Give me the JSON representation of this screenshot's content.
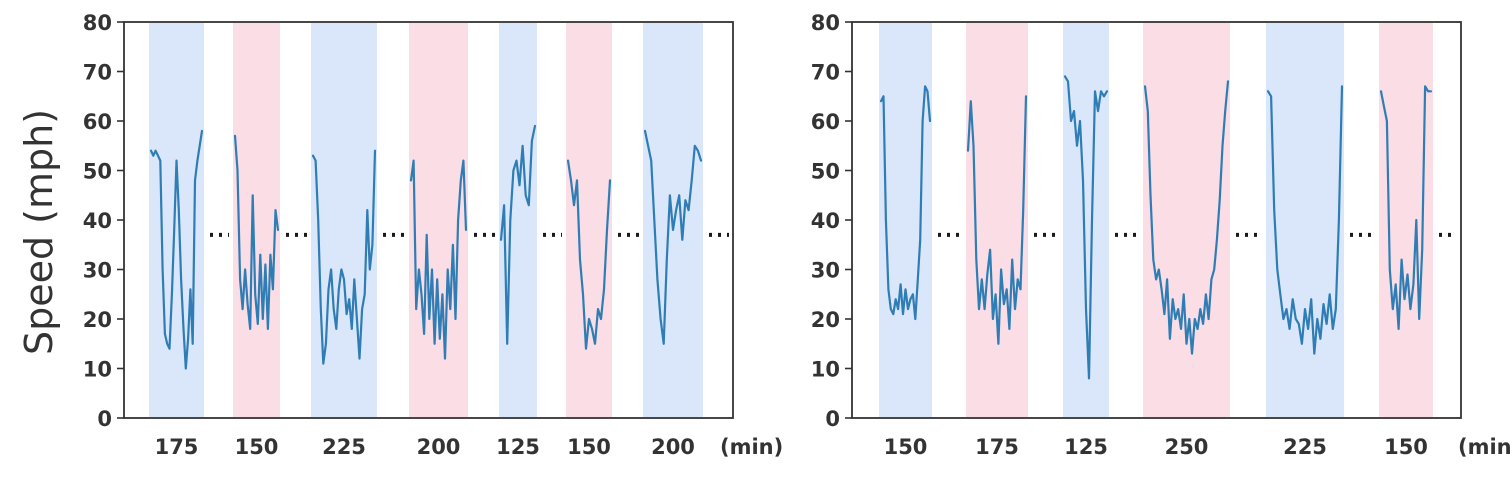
{
  "figure": {
    "ylabel": "Speed (mph)",
    "unit_label": "(min)",
    "y_ticks": [
      "0",
      "10",
      "20",
      "30",
      "40",
      "50",
      "60",
      "70",
      "80"
    ]
  },
  "chart_data": [
    {
      "type": "line",
      "title": "",
      "ylabel": "Speed (mph)",
      "xlabel": "(min)",
      "ylim": [
        0,
        80
      ],
      "threshold": 37,
      "segments": [
        {
          "label": "175",
          "shade": "blue",
          "values": [
            54,
            53,
            54,
            53,
            52,
            30,
            17,
            15,
            14,
            25,
            38,
            52,
            42,
            28,
            18,
            10,
            16,
            26,
            15,
            48,
            52,
            55,
            58
          ]
        },
        {
          "label": "150",
          "shade": "pink",
          "values": [
            57,
            50,
            28,
            22,
            30,
            23,
            18,
            45,
            25,
            19,
            33,
            20,
            31,
            18,
            33,
            26,
            42,
            38
          ]
        },
        {
          "label": "225",
          "shade": "blue",
          "values": [
            53,
            52,
            40,
            22,
            11,
            15,
            26,
            30,
            22,
            18,
            26,
            30,
            28,
            21,
            24,
            18,
            28,
            20,
            12,
            22,
            25,
            42,
            30,
            35,
            54
          ]
        },
        {
          "label": "200",
          "shade": "pink",
          "values": [
            48,
            52,
            22,
            30,
            25,
            17,
            37,
            20,
            30,
            15,
            28,
            16,
            25,
            12,
            30,
            22,
            35,
            20,
            40,
            48,
            52,
            38
          ]
        },
        {
          "label": "125",
          "shade": "blue",
          "values": [
            36,
            43,
            15,
            40,
            50,
            52,
            47,
            55,
            45,
            43,
            56,
            59
          ]
        },
        {
          "label": "150",
          "shade": "pink",
          "values": [
            52,
            48,
            43,
            48,
            32,
            25,
            14,
            20,
            18,
            15,
            22,
            20,
            26,
            38,
            48
          ]
        },
        {
          "label": "200",
          "shade": "blue",
          "values": [
            58,
            55,
            52,
            40,
            28,
            20,
            15,
            32,
            45,
            38,
            42,
            45,
            36,
            44,
            42,
            48,
            55,
            54,
            52
          ]
        }
      ],
      "series": [
        {
          "name": "speed",
          "color": "#2f7db5"
        }
      ]
    },
    {
      "type": "line",
      "title": "",
      "ylabel": "",
      "xlabel": "(min)",
      "ylim": [
        0,
        80
      ],
      "threshold": 37,
      "segments": [
        {
          "label": "150",
          "shade": "blue",
          "values": [
            64,
            65,
            40,
            26,
            22,
            21,
            24,
            22,
            27,
            21,
            26,
            22,
            24,
            25,
            20,
            28,
            36,
            60,
            67,
            66,
            60
          ]
        },
        {
          "label": "175",
          "shade": "pink",
          "values": [
            54,
            64,
            55,
            32,
            22,
            28,
            22,
            29,
            34,
            20,
            25,
            15,
            30,
            23,
            26,
            18,
            32,
            22,
            28,
            26,
            42,
            65
          ]
        },
        {
          "label": "125",
          "shade": "blue",
          "values": [
            69,
            68,
            60,
            62,
            55,
            60,
            48,
            22,
            8,
            40,
            66,
            62,
            66,
            65,
            66
          ]
        },
        {
          "label": "250",
          "shade": "pink",
          "values": [
            67,
            62,
            45,
            32,
            28,
            30,
            26,
            21,
            28,
            16,
            24,
            20,
            22,
            18,
            25,
            15,
            20,
            13,
            20,
            18,
            22,
            19,
            25,
            20,
            28,
            30,
            36,
            44,
            55,
            62,
            68
          ]
        },
        {
          "label": "225",
          "shade": "blue",
          "values": [
            66,
            65,
            42,
            30,
            25,
            20,
            22,
            18,
            24,
            20,
            19,
            15,
            22,
            18,
            24,
            13,
            20,
            16,
            23,
            19,
            25,
            18,
            22,
            40,
            67
          ]
        },
        {
          "label": "150",
          "shade": "pink",
          "values": [
            66,
            63,
            60,
            30,
            22,
            27,
            18,
            32,
            24,
            29,
            22,
            27,
            40,
            20,
            34,
            67,
            66,
            66
          ]
        }
      ],
      "series": [
        {
          "name": "speed",
          "color": "#2f7db5"
        }
      ]
    }
  ],
  "colors": {
    "line": "#2f7db5",
    "shade_blue": "#dae6f9",
    "shade_pink": "#fadde5",
    "axis": "#333333",
    "dots": "#1a1a1a"
  }
}
